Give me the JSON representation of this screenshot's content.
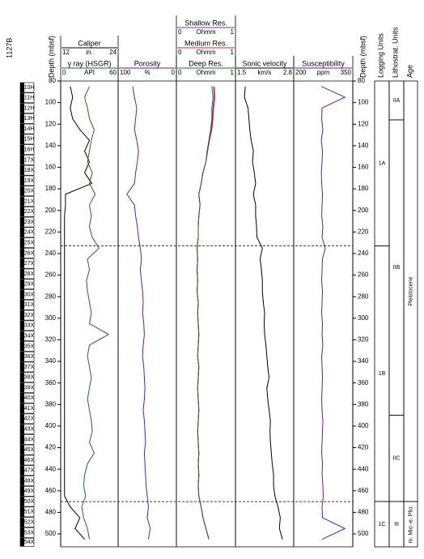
{
  "hole": "1127B",
  "chart_data": {
    "type": "well-log",
    "depth_label": "Depth (mbsf)",
    "ylim": [
      80,
      512
    ],
    "yticks": [
      80,
      100,
      120,
      140,
      160,
      180,
      200,
      220,
      240,
      260,
      280,
      300,
      320,
      340,
      360,
      380,
      400,
      420,
      440,
      460,
      480,
      500
    ],
    "depth": [
      85,
      95,
      105,
      115,
      125,
      135,
      145,
      155,
      165,
      175,
      185,
      195,
      205,
      215,
      225,
      235,
      245,
      255,
      265,
      275,
      285,
      295,
      305,
      315,
      325,
      335,
      345,
      355,
      365,
      375,
      385,
      395,
      405,
      415,
      425,
      435,
      445,
      455,
      465,
      475,
      485,
      495,
      505
    ],
    "cores": {
      "names": [
        "10H",
        "11H",
        "12H",
        "13H",
        "14H",
        "15H",
        "16H",
        "17X",
        "18X",
        "19X",
        "20X",
        "21X",
        "22X",
        "23X",
        "24X",
        "25X",
        "26X",
        "27X",
        "28X",
        "29X",
        "30X",
        "31X",
        "32X",
        "33X",
        "34X",
        "35X",
        "36X",
        "37X",
        "38X",
        "39X",
        "40X",
        "41X",
        "42X",
        "43X",
        "44X",
        "45X",
        "46X",
        "47X",
        "48X",
        "49X",
        "50X",
        "51X",
        "52X",
        "53X",
        "54X"
      ],
      "tops": [
        81.5,
        91.1,
        100.7,
        110.3,
        119.9,
        129.5,
        139.1,
        148.7,
        158.3,
        167.9,
        177.5,
        187.1,
        196.7,
        206.3,
        215.9,
        225.5,
        235.1,
        244.7,
        254.3,
        263.9,
        273.5,
        283.1,
        292.7,
        302.3,
        311.9,
        321.5,
        331.1,
        340.7,
        350.3,
        359.9,
        369.5,
        379.1,
        388.7,
        398.3,
        407.9,
        417.5,
        427.1,
        436.7,
        446.3,
        455.9,
        465.5,
        475.1,
        484.7,
        494.3,
        503.9
      ],
      "bottoms": [
        90.5,
        100.1,
        109.7,
        119.3,
        128.9,
        138.5,
        148.1,
        157.7,
        167.3,
        176.9,
        186.5,
        196.1,
        205.7,
        215.3,
        224.9,
        234.5,
        244.1,
        253.7,
        263.3,
        272.9,
        282.5,
        292.1,
        301.7,
        311.3,
        320.9,
        330.5,
        340.1,
        349.7,
        359.3,
        368.9,
        378.5,
        388.1,
        397.7,
        407.3,
        416.9,
        426.5,
        436.1,
        445.7,
        455.3,
        464.9,
        474.5,
        484.1,
        493.7,
        503.3,
        511.5
      ]
    },
    "tracks": [
      {
        "scales": [
          {
            "name": "Caliper",
            "unit": "in.",
            "xlim": [
              12,
              24
            ],
            "color": "#000000",
            "values": [
              14,
              14.5,
              14,
              14.5,
              16,
              18,
              17,
              18,
              17,
              18.5,
              13,
              13,
              12.8,
              12.8,
              12.8,
              12.8,
              12.8,
              12.8,
              12.8,
              12.8,
              12.8,
              12.8,
              12.8,
              12.8,
              12.8,
              12.8,
              12.8,
              12.8,
              12.8,
              12.8,
              12.8,
              12.8,
              12.8,
              12.8,
              12.8,
              12.8,
              12.8,
              12.8,
              12.8,
              14,
              16,
              15,
              17
            ]
          },
          {
            "name": "γ ray (HSGR)",
            "unit": "API",
            "xlim": [
              0,
              60
            ],
            "color": "#1e6b2e",
            "values": [
              30,
              25,
              28,
              30,
              35,
              32,
              30,
              28,
              33,
              30,
              36,
              30,
              32,
              30,
              33,
              40,
              28,
              30,
              27,
              28,
              30,
              32,
              30,
              50,
              30,
              28,
              30,
              32,
              30,
              28,
              30,
              32,
              33,
              30,
              35,
              28,
              25,
              24,
              26,
              22,
              24,
              28,
              30
            ]
          }
        ]
      },
      {
        "scales": [
          {
            "name": "Porosity",
            "unit": "%",
            "xlim": [
              100,
              0
            ],
            "color": "#6a1b9a",
            "values": [
              75,
              72,
              68,
              70,
              72,
              68,
              65,
              67,
              70,
              72,
              85,
              72,
              70,
              67,
              65,
              62,
              60,
              62,
              60,
              58,
              57,
              58,
              56,
              55,
              57,
              58,
              56,
              55,
              54,
              55,
              57,
              55,
              54,
              53,
              55,
              54,
              53,
              52,
              50,
              48,
              50,
              45,
              48
            ]
          }
        ]
      },
      {
        "scales": [
          {
            "name": "Shallow Res.",
            "unit": "Ohmm",
            "xlim": [
              0,
              1
            ],
            "color": "#7b2fa0",
            "values": [
              0.63,
              0.64,
              0.62,
              0.61,
              0.59,
              0.56,
              0.52,
              0.5,
              0.45,
              0.42,
              0.38,
              0.4,
              0.38,
              0.37,
              0.37,
              0.35,
              0.36,
              0.35,
              0.36,
              0.35,
              0.37,
              0.36,
              0.37,
              0.38,
              0.37,
              0.36,
              0.38,
              0.37,
              0.36,
              0.37,
              0.38,
              0.37,
              0.36,
              0.37,
              0.38,
              0.37,
              0.38,
              0.37,
              0.38,
              0.42,
              0.45,
              0.5,
              0.55
            ]
          },
          {
            "name": "Medium Res.",
            "unit": "Ohmm",
            "xlim": [
              0,
              1
            ],
            "color": "#d0202a",
            "values": [
              0.64,
              0.65,
              0.63,
              0.62,
              0.6,
              0.56,
              0.53,
              0.5,
              0.45,
              0.42,
              0.38,
              0.4,
              0.38,
              0.37,
              0.37,
              0.35,
              0.36,
              0.35,
              0.36,
              0.35,
              0.37,
              0.36,
              0.37,
              0.38,
              0.37,
              0.36,
              0.38,
              0.37,
              0.36,
              0.37,
              0.38,
              0.37,
              0.36,
              0.37,
              0.38,
              0.37,
              0.38,
              0.37,
              0.38,
              0.42,
              0.45,
              0.5,
              0.55
            ]
          },
          {
            "name": "Deep Res.",
            "unit": "Ohmm",
            "xlim": [
              0,
              1
            ],
            "color": "#1e6b2e",
            "values": [
              0.6,
              0.62,
              0.6,
              0.6,
              0.58,
              0.55,
              0.52,
              0.5,
              0.45,
              0.42,
              0.38,
              0.4,
              0.38,
              0.37,
              0.37,
              0.35,
              0.36,
              0.35,
              0.36,
              0.35,
              0.37,
              0.36,
              0.37,
              0.38,
              0.37,
              0.36,
              0.38,
              0.37,
              0.36,
              0.37,
              0.38,
              0.37,
              0.36,
              0.37,
              0.38,
              0.37,
              0.38,
              0.37,
              0.38,
              0.42,
              0.45,
              0.5,
              0.55
            ]
          }
        ]
      },
      {
        "scales": [
          {
            "name": "Sonic velocity",
            "unit": "km/s",
            "xlim": [
              1.5,
              2.8
            ],
            "color": "#000000",
            "values": [
              1.72,
              1.7,
              1.78,
              1.8,
              1.82,
              1.85,
              1.9,
              1.88,
              1.92,
              1.95,
              1.9,
              1.95,
              1.95,
              1.97,
              1.98,
              2.1,
              2.05,
              2.08,
              2.1,
              2.1,
              2.12,
              2.15,
              2.14,
              2.15,
              2.18,
              2.2,
              2.22,
              2.25,
              2.2,
              2.22,
              2.25,
              2.28,
              2.27,
              2.28,
              2.3,
              2.32,
              2.35,
              2.35,
              2.38,
              2.45,
              2.5,
              2.48,
              2.55
            ]
          }
        ]
      },
      {
        "scales": [
          {
            "name": "Susceptibility",
            "unit": "ppm",
            "xlim": [
              200,
              350
            ],
            "color": "#6a1b9a",
            "values": [
              270,
              330,
              272,
              271,
              274,
              270,
              273,
              272,
              270,
              271,
              273,
              272,
              271,
              274,
              272,
              280,
              273,
              272,
              271,
              273,
              272,
              271,
              273,
              272,
              274,
              271,
              272,
              273,
              272,
              271,
              272,
              274,
              273,
              272,
              271,
              273,
              272,
              274,
              275,
              272,
              273,
              330,
              272
            ]
          }
        ]
      }
    ],
    "boundaries": [
      233,
      470
    ],
    "units": [
      {
        "title": "Logging Units",
        "intervals": [
          {
            "label": "1A",
            "top": 80,
            "bottom": 233
          },
          {
            "label": "1B",
            "top": 233,
            "bottom": 470
          },
          {
            "label": "1C",
            "top": 470,
            "bottom": 512
          }
        ]
      },
      {
        "title": "Lithostrat. Units",
        "intervals": [
          {
            "label": "IIA",
            "top": 80,
            "bottom": 116
          },
          {
            "label": "IIB",
            "top": 116,
            "bottom": 390
          },
          {
            "label": "IIC",
            "top": 390,
            "bottom": 470
          },
          {
            "label": "III",
            "top": 470,
            "bottom": 512
          }
        ]
      },
      {
        "title": "Age",
        "intervals": [
          {
            "label": "Pleistocene",
            "top": 80,
            "bottom": 470
          },
          {
            "label": "m. Mio.-e. Plio.",
            "top": 470,
            "bottom": 512
          }
        ]
      }
    ]
  }
}
